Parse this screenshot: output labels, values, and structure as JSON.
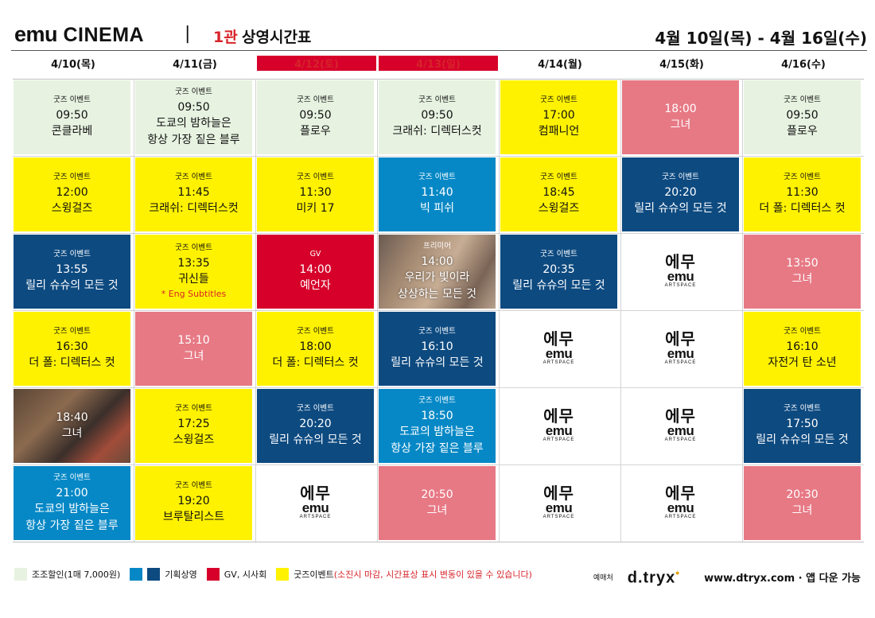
{
  "header": {
    "brand_emu": "emu",
    "brand_cinema": "CINEMA",
    "separator": "|",
    "hall": "1관",
    "title": "상영시간표",
    "date_range": "4월 10일(목) - 4월 16일(수)"
  },
  "days": [
    {
      "label": "4/10(목)",
      "weekend": false
    },
    {
      "label": "4/11(금)",
      "weekend": false
    },
    {
      "label": "4/12(토)",
      "weekend": true
    },
    {
      "label": "4/13(일)",
      "weekend": true
    },
    {
      "label": "4/14(월)",
      "weekend": false
    },
    {
      "label": "4/15(화)",
      "weekend": false
    },
    {
      "label": "4/16(수)",
      "weekend": false
    }
  ],
  "schedule": [
    [
      {
        "style": "green",
        "tag": "굿즈 이벤트",
        "time": "09:50",
        "movie": "콘클라베"
      },
      {
        "style": "yellow",
        "tag": "굿즈 이벤트",
        "time": "12:00",
        "movie": "스윙걸즈"
      },
      {
        "style": "navy",
        "tag": "굿즈 이벤트",
        "time": "13:55",
        "movie": "릴리 슈슈의 모든 것"
      },
      {
        "style": "yellow",
        "tag": "굿즈 이벤트",
        "time": "16:30",
        "movie": "더 폴: 디렉터스 컷"
      },
      {
        "style": "photo1",
        "tag": "",
        "time": "18:40",
        "movie": "그녀"
      },
      {
        "style": "blue",
        "tag": "굿즈 이벤트",
        "time": "21:00",
        "movie": "도쿄의 밤하늘은",
        "movie2": "항상 가장 짙은 블루"
      }
    ],
    [
      {
        "style": "green",
        "tag": "굿즈 이벤트",
        "time": "09:50",
        "movie": "도쿄의 밤하늘은",
        "movie2": "항상 가장 짙은 블루"
      },
      {
        "style": "yellow",
        "tag": "굿즈 이벤트",
        "time": "11:45",
        "movie": "크래쉬: 디렉터스컷"
      },
      {
        "style": "yellow",
        "tag": "굿즈 이벤트",
        "time": "13:35",
        "movie": "귀신들",
        "sub": "* Eng Subtitles"
      },
      {
        "style": "pink",
        "tag": "",
        "time": "15:10",
        "movie": "그녀"
      },
      {
        "style": "yellow",
        "tag": "굿즈 이벤트",
        "time": "17:25",
        "movie": "스윙걸즈"
      },
      {
        "style": "yellow",
        "tag": "굿즈 이벤트",
        "time": "19:20",
        "movie": "브루탈리스트"
      }
    ],
    [
      {
        "style": "green",
        "tag": "굿즈 이벤트",
        "time": "09:50",
        "movie": "플로우"
      },
      {
        "style": "yellow",
        "tag": "굿즈 이벤트",
        "time": "11:30",
        "movie": "미키 17"
      },
      {
        "style": "red",
        "tag": "GV",
        "time": "14:00",
        "movie": "예언자"
      },
      {
        "style": "yellow",
        "tag": "굿즈 이벤트",
        "time": "18:00",
        "movie": "더 폴: 디렉터스 컷"
      },
      {
        "style": "navy",
        "tag": "굿즈 이벤트",
        "time": "20:20",
        "movie": "릴리 슈슈의 모든 것"
      },
      {
        "style": "logo"
      }
    ],
    [
      {
        "style": "green",
        "tag": "굿즈 이벤트",
        "time": "09:50",
        "movie": "크래쉬: 디렉터스컷"
      },
      {
        "style": "blue",
        "tag": "굿즈 이벤트",
        "time": "11:40",
        "movie": "빅 피쉬"
      },
      {
        "style": "photo2",
        "tag": "프리미어",
        "time": "14:00",
        "movie": "우리가 빛이라",
        "movie2": "상상하는 모든 것"
      },
      {
        "style": "navy",
        "tag": "굿즈 이벤트",
        "time": "16:10",
        "movie": "릴리 슈슈의 모든 것"
      },
      {
        "style": "blue",
        "tag": "굿즈 이벤트",
        "time": "18:50",
        "movie": "도쿄의 밤하늘은",
        "movie2": "항상 가장 짙은 블루"
      },
      {
        "style": "pink",
        "tag": "",
        "time": "20:50",
        "movie": "그녀"
      }
    ],
    [
      {
        "style": "yellow",
        "tag": "굿즈 이벤트",
        "time": "17:00",
        "movie": "컴패니언"
      },
      {
        "style": "yellow",
        "tag": "굿즈 이벤트",
        "time": "18:45",
        "movie": "스윙걸즈"
      },
      {
        "style": "navy",
        "tag": "굿즈 이벤트",
        "time": "20:35",
        "movie": "릴리 슈슈의 모든 것"
      },
      {
        "style": "logo"
      },
      {
        "style": "logo"
      },
      {
        "style": "logo"
      }
    ],
    [
      {
        "style": "pink",
        "tag": "",
        "time": "18:00",
        "movie": "그녀"
      },
      {
        "style": "navy",
        "tag": "굿즈 이벤트",
        "time": "20:20",
        "movie": "릴리 슈슈의 모든 것"
      },
      {
        "style": "logo"
      },
      {
        "style": "logo"
      },
      {
        "style": "logo"
      },
      {
        "style": "logo"
      }
    ],
    [
      {
        "style": "green",
        "tag": "굿즈 이벤트",
        "time": "09:50",
        "movie": "플로우"
      },
      {
        "style": "yellow",
        "tag": "굿즈 이벤트",
        "time": "11:30",
        "movie": "더 폴: 디렉터스 컷"
      },
      {
        "style": "pink",
        "tag": "",
        "time": "13:50",
        "movie": "그녀"
      },
      {
        "style": "yellow",
        "tag": "굿즈 이벤트",
        "time": "16:10",
        "movie": "자전거 탄 소년"
      },
      {
        "style": "navy",
        "tag": "굿즈 이벤트",
        "time": "17:50",
        "movie": "릴리 슈슈의 모든 것"
      },
      {
        "style": "pink",
        "tag": "",
        "time": "20:30",
        "movie": "그녀"
      }
    ]
  ],
  "logo_block": {
    "top": "에무",
    "bottom": "emu",
    "caption": "ARTSPACE"
  },
  "legend": [
    {
      "colors": [
        "#e7f2e1"
      ],
      "label": "조조할인(1매 7,000원)"
    },
    {
      "colors": [
        "#0688c6",
        "#0d4a80"
      ],
      "label": "기획상영"
    },
    {
      "colors": [
        "#d6002a"
      ],
      "label": "GV, 시사회"
    },
    {
      "colors": [
        "#fff200"
      ],
      "label": "굿즈이벤트",
      "note": "(소진시 마감, 시간표상 표시 변동이 있을 수 있습니다)"
    }
  ],
  "footer": {
    "ticket_label": "예매처",
    "ticket_brand": "d.tryx",
    "site": "www.dtryx.com · 앱 다운 가능"
  },
  "colors": {
    "green": "#e7f2e1",
    "yellow": "#fff200",
    "navy": "#0d4a80",
    "blue": "#0688c6",
    "pink": "#e77985",
    "red": "#d6002a",
    "accent_red": "#d7242a"
  }
}
